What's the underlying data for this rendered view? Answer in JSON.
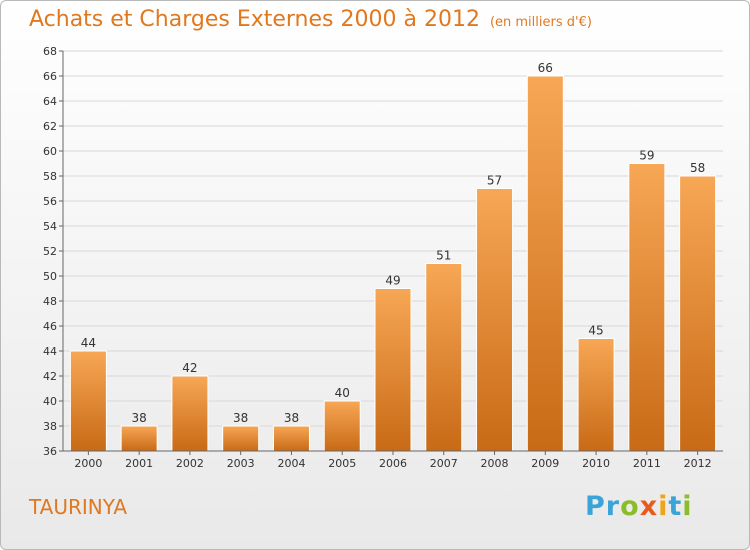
{
  "header": {
    "title": "Achats et Charges Externes 2000 à 2012",
    "subtitle": "(en milliers d'€)"
  },
  "footer": {
    "place": "TAURINYA",
    "logo_letters": [
      {
        "ch": "P",
        "color": "#3aa4d8"
      },
      {
        "ch": "r",
        "color": "#3aa4d8"
      },
      {
        "ch": "o",
        "color": "#8cbc2a"
      },
      {
        "ch": "x",
        "color": "#e85b1e"
      },
      {
        "ch": "i",
        "color": "#f0a31b"
      },
      {
        "ch": "t",
        "color": "#3aa4d8"
      },
      {
        "ch": "i",
        "color": "#8cbc2a"
      }
    ]
  },
  "chart_data": {
    "type": "bar",
    "title": "Achats et Charges Externes 2000 à 2012",
    "subtitle": "(en milliers d'€)",
    "categories": [
      "2000",
      "2001",
      "2002",
      "2003",
      "2004",
      "2005",
      "2006",
      "2007",
      "2008",
      "2009",
      "2010",
      "2011",
      "2012"
    ],
    "values": [
      44,
      38,
      42,
      38,
      38,
      40,
      49,
      51,
      57,
      66,
      45,
      59,
      58
    ],
    "ylim": [
      36,
      68
    ],
    "ytick_step": 2,
    "grid": true,
    "colors": {
      "bar_top": "#f7a755",
      "bar_bottom": "#c86a16",
      "bar_edge": "#ffffff",
      "grid": "#d8d8d8",
      "axis": "#666666"
    }
  }
}
